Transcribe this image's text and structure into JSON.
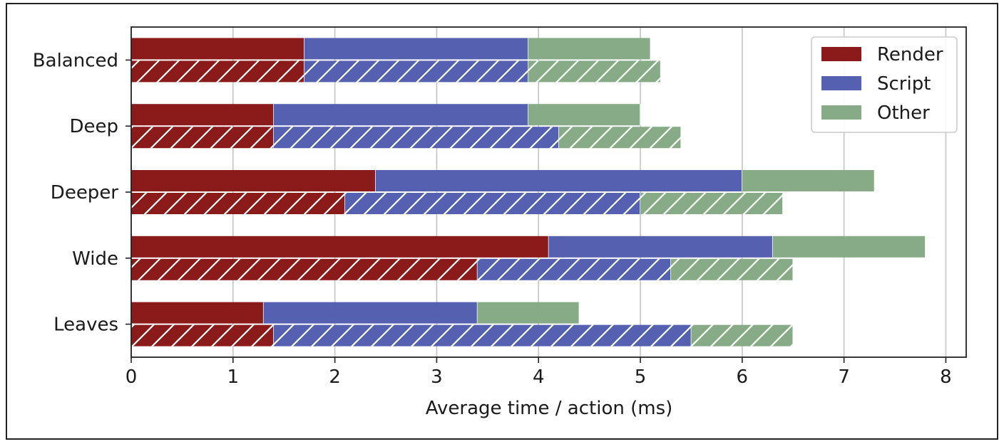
{
  "chart_data": {
    "type": "bar",
    "orientation": "horizontal",
    "stacked": true,
    "categories": [
      "Balanced",
      "Deep",
      "Deeper",
      "Wide",
      "Leaves"
    ],
    "xlabel": "Average time / action (ms)",
    "ylabel": "",
    "xlim": [
      0,
      8.2
    ],
    "xticks": [
      "0",
      "1",
      "2",
      "3",
      "4",
      "5",
      "6",
      "7",
      "8"
    ],
    "grid": "vertical",
    "legend_position": "top-right",
    "series": [
      {
        "name": "Render",
        "color": "#8b1a1a"
      },
      {
        "name": "Script",
        "color": "#5561b0"
      },
      {
        "name": "Other",
        "color": "#86ab86"
      }
    ],
    "groups": [
      {
        "variant": "solid",
        "values": {
          "Render": [
            1.7,
            1.4,
            2.4,
            4.1,
            1.3
          ],
          "Script": [
            2.2,
            2.5,
            3.6,
            2.2,
            2.1
          ],
          "Other": [
            1.2,
            1.1,
            1.3,
            1.5,
            1.0
          ]
        }
      },
      {
        "variant": "hatched",
        "values": {
          "Render": [
            1.7,
            1.4,
            2.1,
            3.4,
            1.4
          ],
          "Script": [
            2.2,
            2.8,
            2.9,
            1.9,
            4.1
          ],
          "Other": [
            1.3,
            1.2,
            1.4,
            1.2,
            1.0
          ]
        }
      }
    ]
  }
}
